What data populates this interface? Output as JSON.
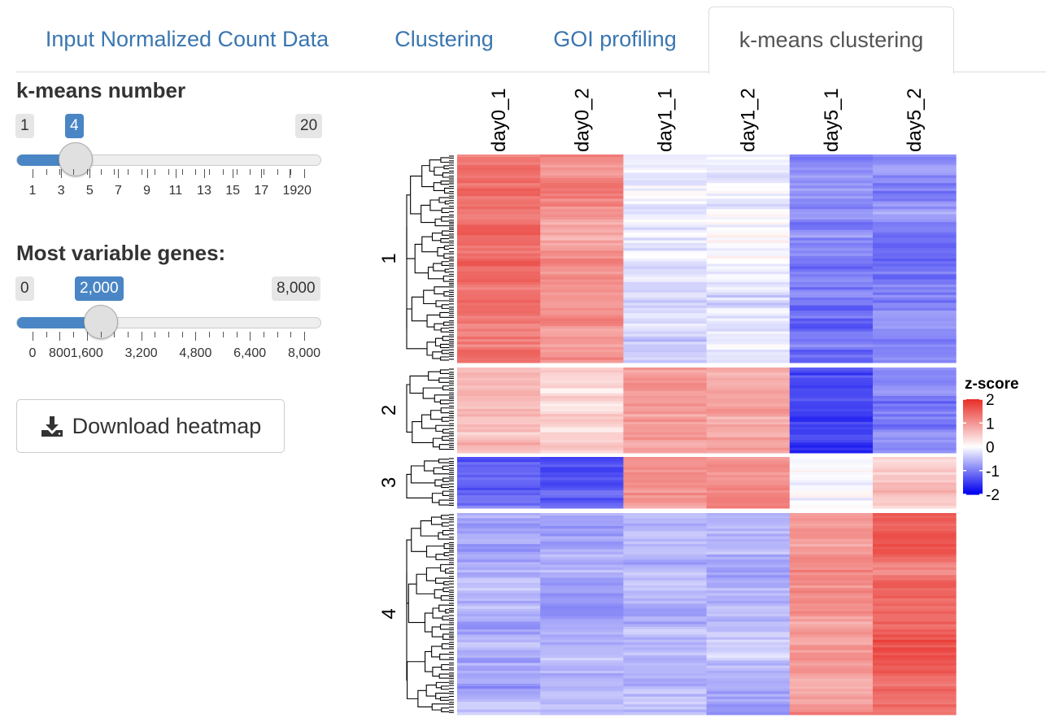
{
  "tabs": [
    {
      "label": "Input Normalized Count Data",
      "active": false
    },
    {
      "label": "Clustering",
      "active": false
    },
    {
      "label": "GOI profiling",
      "active": false
    },
    {
      "label": "k-means clustering",
      "active": true
    }
  ],
  "kmeans_slider": {
    "label": "k-means number",
    "min": 1,
    "max": 20,
    "value": 4,
    "min_label": "1",
    "max_label": "20",
    "value_label": "4",
    "tick_labels": [
      "1",
      "3",
      "5",
      "7",
      "9",
      "11",
      "13",
      "15",
      "17",
      "19",
      "20"
    ],
    "tick_values": [
      1,
      3,
      5,
      7,
      9,
      11,
      13,
      15,
      17,
      19,
      20
    ]
  },
  "genes_slider": {
    "label": "Most variable genes:",
    "min": 0,
    "max": 8000,
    "value": 2000,
    "min_label": "0",
    "max_label": "8,000",
    "value_label": "2,000",
    "tick_labels": [
      "0",
      "800",
      "1,600",
      "3,200",
      "4,800",
      "6,400",
      "8,000"
    ],
    "tick_values": [
      0,
      800,
      1600,
      3200,
      4800,
      6400,
      8000
    ]
  },
  "download_button": {
    "label": "Download heatmap",
    "icon": "download-icon"
  },
  "chart_data": {
    "type": "heatmap",
    "columns": [
      "day0_1",
      "day0_2",
      "day1_1",
      "day1_2",
      "day5_1",
      "day5_2"
    ],
    "clusters": [
      {
        "label": "1",
        "mean_zscore": [
          1.3,
          1.1,
          -0.2,
          -0.1,
          -1.1,
          -0.9
        ]
      },
      {
        "label": "2",
        "mean_zscore": [
          0.6,
          0.4,
          0.9,
          0.8,
          -1.4,
          -1.0
        ]
      },
      {
        "label": "3",
        "mean_zscore": [
          -1.2,
          -1.4,
          1.1,
          0.9,
          -0.2,
          0.5
        ]
      },
      {
        "label": "4",
        "mean_zscore": [
          -0.6,
          -0.7,
          -0.6,
          -0.6,
          1.0,
          1.6
        ]
      }
    ],
    "legend": {
      "title": "z-score",
      "ticks": [
        "2",
        "1",
        "0",
        "-1",
        "-2"
      ],
      "range": [
        -2,
        2
      ]
    },
    "colors": {
      "high": "#e8302a",
      "mid": "#ffffff",
      "low": "#0000ee"
    }
  }
}
